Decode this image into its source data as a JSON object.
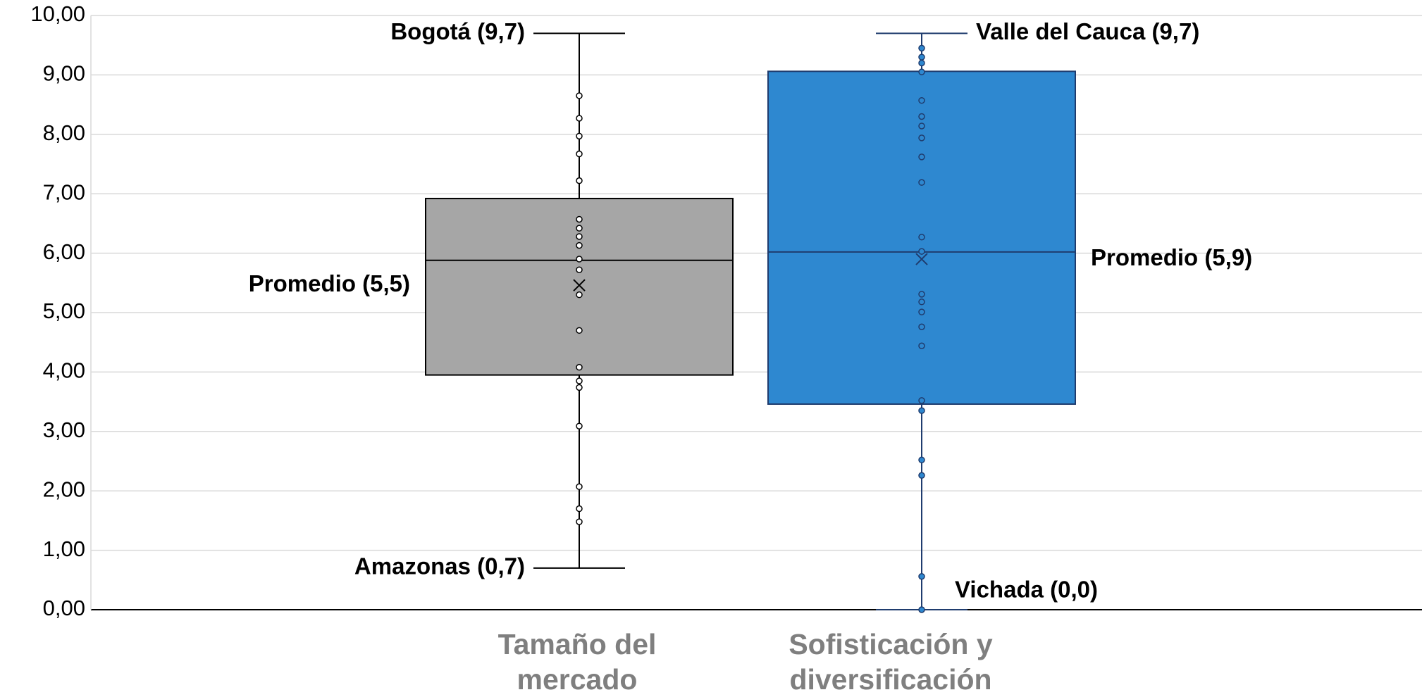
{
  "chart_data": {
    "type": "box",
    "categories": [
      "Tamaño del mercado",
      "Sofisticación y diversificación"
    ],
    "ylim": [
      0,
      10
    ],
    "yticks": [
      {
        "value": 0,
        "label": "0,00"
      },
      {
        "value": 1,
        "label": "1,00"
      },
      {
        "value": 2,
        "label": "2,00"
      },
      {
        "value": 3,
        "label": "3,00"
      },
      {
        "value": 4,
        "label": "4,00"
      },
      {
        "value": 5,
        "label": "5,00"
      },
      {
        "value": 6,
        "label": "6,00"
      },
      {
        "value": 7,
        "label": "7,00"
      },
      {
        "value": 8,
        "label": "8,00"
      },
      {
        "value": 9,
        "label": "9,00"
      },
      {
        "value": 10,
        "label": "10,00"
      }
    ],
    "grid": true,
    "boxes": [
      {
        "color": "#a6a6a6",
        "stroke": "#000000",
        "min": 0.7,
        "q1": 3.95,
        "median": 5.88,
        "q3": 6.92,
        "max": 9.7,
        "mean": 5.46,
        "points": [
          8.65,
          8.27,
          7.97,
          7.67,
          7.22,
          6.57,
          6.42,
          6.28,
          6.13,
          5.9,
          5.72,
          5.3,
          4.7,
          4.08,
          3.85,
          3.74,
          3.09,
          2.07,
          1.7,
          1.48
        ],
        "labels": {
          "max": "Bogotá (9,7)",
          "min": "Amazonas (0,7)",
          "mean": "Promedio (5,5)"
        }
      },
      {
        "color": "#2e88d0",
        "stroke": "#1f3c6e",
        "min": 0,
        "q1": 3.46,
        "median": 6.02,
        "q3": 9.06,
        "max": 9.7,
        "mean": 5.9,
        "points": [
          9.45,
          9.3,
          9.2,
          9.05,
          8.57,
          8.3,
          8.14,
          7.94,
          7.62,
          7.19,
          6.27,
          6.03,
          5.31,
          5.18,
          5.01,
          4.76,
          4.44,
          3.52,
          3.35,
          2.52,
          2.26,
          0.56,
          0
        ],
        "labels": {
          "max": "Valle del Cauca (9,7)",
          "min": "Vichada (0,0)",
          "mean": "Promedio (5,9)"
        }
      }
    ]
  }
}
